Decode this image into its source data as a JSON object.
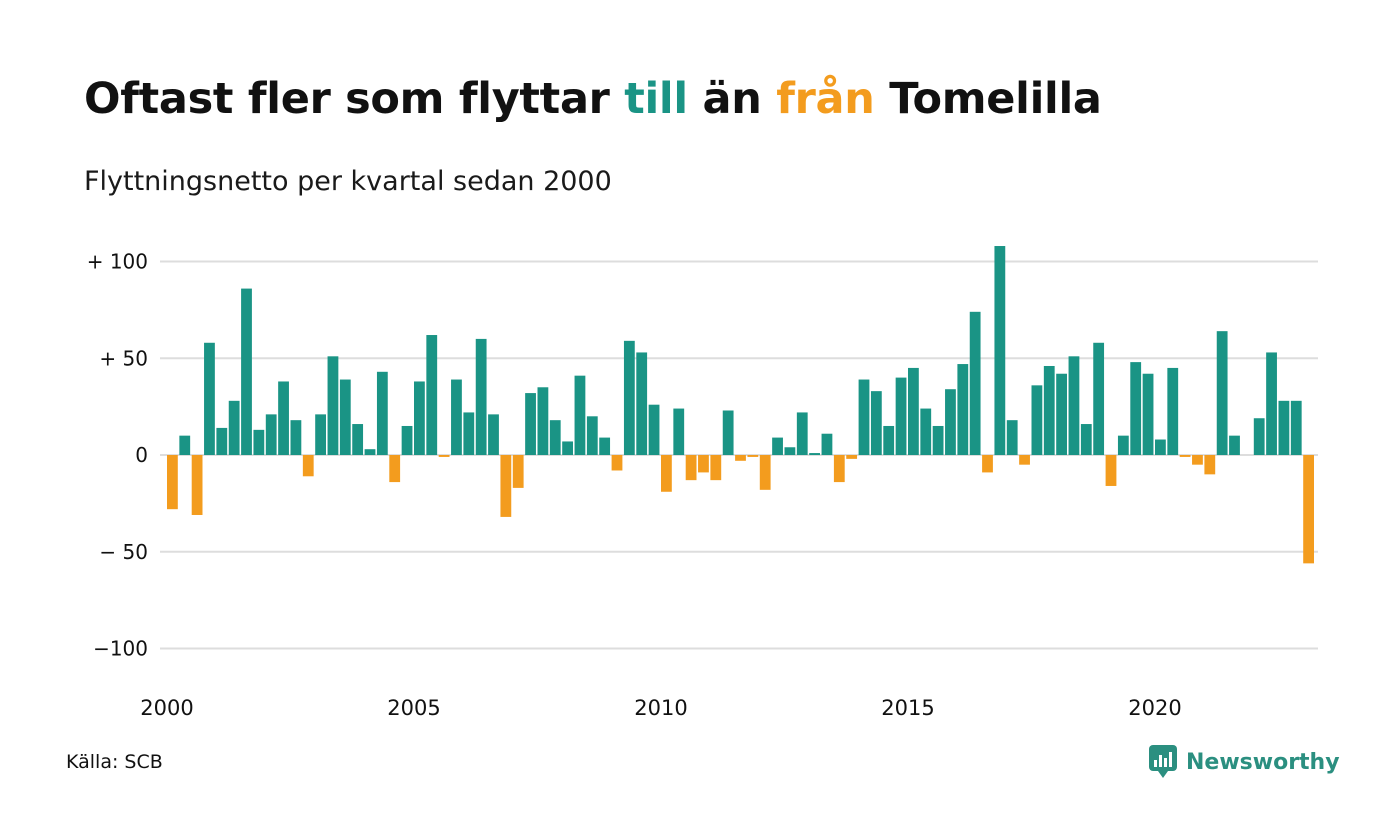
{
  "header": {
    "title_parts": [
      {
        "text": "Oftast fler som flyttar ",
        "color": "#111111"
      },
      {
        "text": "till",
        "color": "#1a9485"
      },
      {
        "text": " än ",
        "color": "#111111"
      },
      {
        "text": "från",
        "color": "#f39c1e"
      },
      {
        "text": " Tomelilla",
        "color": "#111111"
      }
    ],
    "subtitle": "Flyttningsnetto per kvartal sedan 2000"
  },
  "footer": {
    "source": "Källa: SCB",
    "brand": "Newsworthy",
    "brand_icon": "newsworthy-logo-icon"
  },
  "colors": {
    "positive": "#1a9485",
    "negative": "#f39c1e",
    "grid": "#dddddd",
    "text": "#111111",
    "brand": "#2b8f80"
  },
  "chart_data": {
    "type": "bar",
    "title": "Oftast fler som flyttar till än från Tomelilla",
    "subtitle": "Flyttningsnetto per kvartal sedan 2000",
    "xlabel": "",
    "ylabel": "",
    "ylim": [
      -100,
      110
    ],
    "yticks": [
      {
        "value": 100,
        "label": "+ 100"
      },
      {
        "value": 50,
        "label": "+  50"
      },
      {
        "value": 0,
        "label": "0"
      },
      {
        "value": -50,
        "label": "− 50"
      },
      {
        "value": -100,
        "label": "−100"
      }
    ],
    "xticks": [
      {
        "year": 2000,
        "label": "2000"
      },
      {
        "year": 2005,
        "label": "2005"
      },
      {
        "year": 2010,
        "label": "2010"
      },
      {
        "year": 2015,
        "label": "2015"
      },
      {
        "year": 2020,
        "label": "2020"
      }
    ],
    "grid": true,
    "legend": "none",
    "start": "2000 Q1",
    "frequency": "quarterly",
    "values": [
      -28,
      10,
      -31,
      58,
      14,
      28,
      86,
      13,
      21,
      38,
      18,
      -11,
      21,
      51,
      39,
      16,
      3,
      43,
      -14,
      15,
      38,
      62,
      -1,
      39,
      22,
      60,
      21,
      -32,
      -17,
      32,
      35,
      18,
      7,
      41,
      20,
      9,
      -8,
      59,
      53,
      26,
      -19,
      24,
      -13,
      -9,
      -13,
      23,
      -3,
      -1,
      -18,
      9,
      4,
      22,
      1,
      11,
      -14,
      -2,
      39,
      33,
      15,
      40,
      45,
      24,
      15,
      34,
      47,
      74,
      -9,
      108,
      18,
      -5,
      36,
      46,
      42,
      51,
      16,
      58,
      -16,
      10,
      48,
      42,
      8,
      45,
      -1,
      -5,
      -10,
      64,
      10,
      0,
      19,
      53,
      28,
      28,
      -56
    ]
  }
}
